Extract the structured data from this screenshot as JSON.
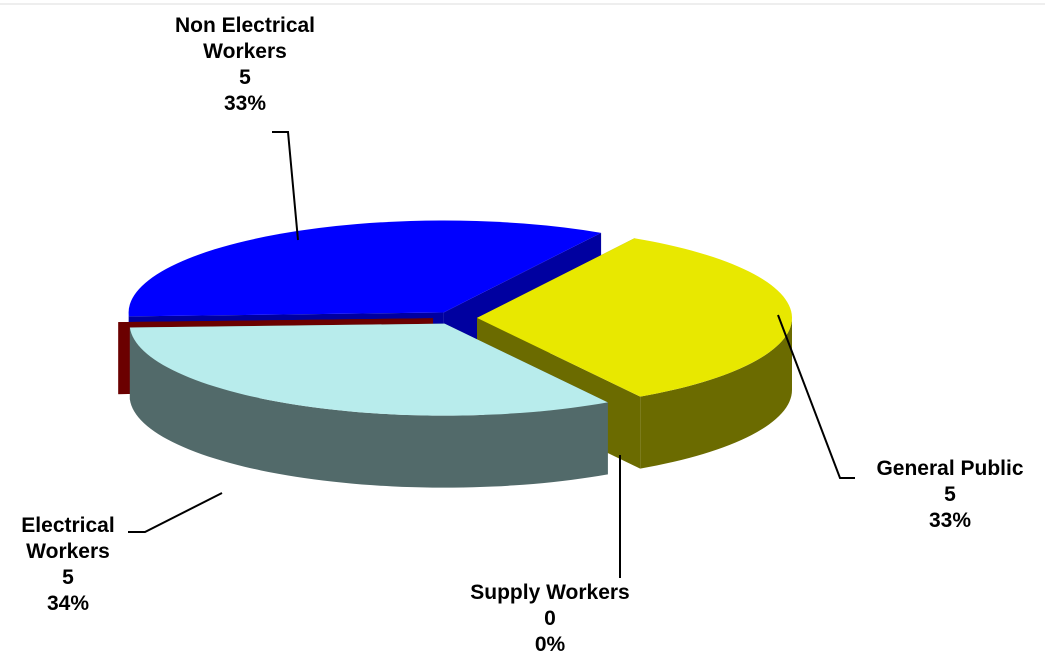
{
  "chart_data": {
    "type": "pie3d",
    "categories": [
      "Non Electrical Workers",
      "General Public",
      "Supply Workers",
      "Electrical Workers"
    ],
    "values": [
      5,
      5,
      0,
      5
    ],
    "percentages": [
      33,
      33,
      0,
      34
    ],
    "percentage_labels": [
      "33%",
      "33%",
      "0%",
      "34%"
    ],
    "colors": [
      "#e8e800",
      "#b8ecec",
      "#6b0000",
      "#0000ff"
    ],
    "side_colors": [
      "#6b6b00",
      "#526a6a",
      "#6b0000",
      "#0000a0"
    ]
  }
}
